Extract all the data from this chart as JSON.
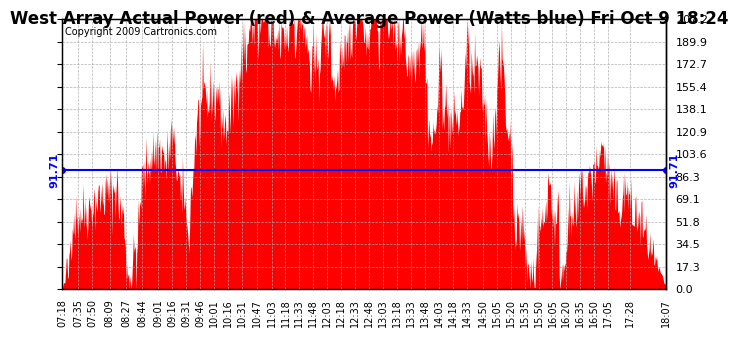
{
  "title": "West Array Actual Power (red) & Average Power (Watts blue) Fri Oct 9 18:24",
  "copyright_text": "Copyright 2009 Cartronics.com",
  "avg_power": 91.71,
  "y_max": 207.2,
  "y_min": 0.0,
  "y_ticks": [
    0.0,
    17.3,
    34.5,
    51.8,
    69.1,
    86.3,
    103.6,
    120.9,
    138.1,
    155.4,
    172.7,
    189.9,
    207.2
  ],
  "background_color": "#ffffff",
  "plot_bg_color": "#ffffff",
  "fill_color": "#ff0000",
  "avg_line_color": "#0000ff",
  "grid_color": "#aaaaaa",
  "x_labels": [
    "07:18",
    "07:35",
    "07:50",
    "08:09",
    "08:27",
    "08:44",
    "09:01",
    "09:16",
    "09:31",
    "09:46",
    "10:01",
    "10:16",
    "10:31",
    "10:47",
    "11:03",
    "11:18",
    "11:33",
    "11:48",
    "12:03",
    "12:18",
    "12:33",
    "12:48",
    "13:03",
    "13:18",
    "13:33",
    "13:48",
    "14:03",
    "14:18",
    "14:33",
    "14:50",
    "15:05",
    "15:20",
    "15:35",
    "15:50",
    "16:05",
    "16:20",
    "16:35",
    "16:50",
    "17:05",
    "17:28",
    "18:07"
  ],
  "title_fontsize": 12,
  "copyright_fontsize": 7,
  "tick_fontsize": 8,
  "n_points": 900,
  "seed": 42
}
